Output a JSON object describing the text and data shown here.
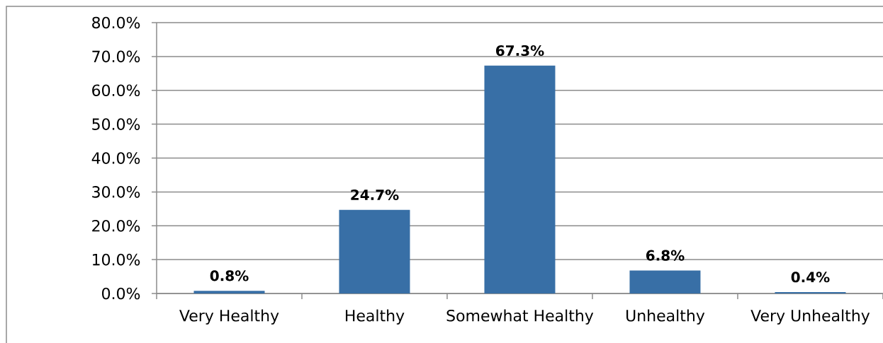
{
  "chart_data": {
    "type": "bar",
    "categories": [
      "Very Healthy",
      "Healthy",
      "Somewhat Healthy",
      "Unhealthy",
      "Very Unhealthy"
    ],
    "values": [
      0.8,
      24.7,
      67.3,
      6.8,
      0.4
    ],
    "value_labels": [
      "0.8%",
      "24.7%",
      "67.3%",
      "6.8%",
      "0.4%"
    ],
    "color": "#386fa6",
    "ylim": [
      0,
      80
    ],
    "yticks": [
      {
        "value": 0,
        "label": "0.0%"
      },
      {
        "value": 10,
        "label": "10.0%"
      },
      {
        "value": 20,
        "label": "20.0%"
      },
      {
        "value": 30,
        "label": "30.0%"
      },
      {
        "value": 40,
        "label": "40.0%"
      },
      {
        "value": 50,
        "label": "50.0%"
      },
      {
        "value": 60,
        "label": "60.0%"
      },
      {
        "value": 70,
        "label": "70.0%"
      },
      {
        "value": 80,
        "label": "80.0%"
      }
    ],
    "grid": "y"
  }
}
